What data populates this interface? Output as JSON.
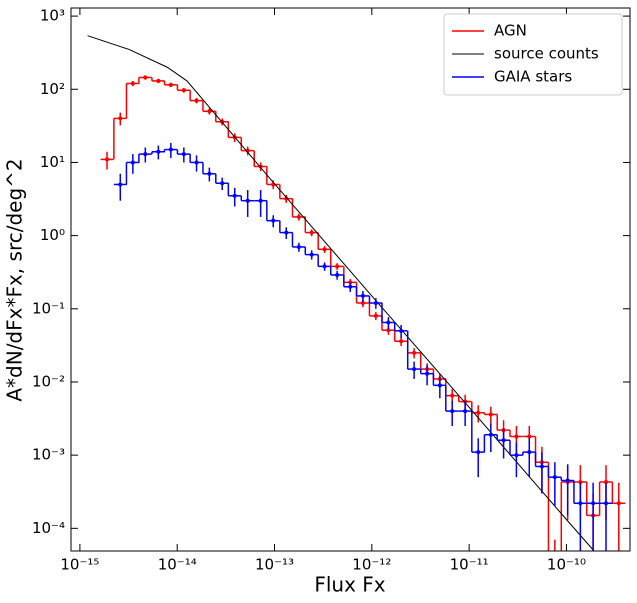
{
  "chart_data": {
    "type": "loglog-step",
    "xlabel": "Flux Fx",
    "ylabel": "A*dN/dFx*Fx, src/deg^2",
    "xscale": "log",
    "yscale": "log",
    "legend": "upper right",
    "xlim": [
      8.1e-16,
      4.5e-10
    ],
    "ylim": [
      4.9e-05,
      1290
    ],
    "xticks": [
      {
        "value": 1e-15,
        "label": "10⁻¹⁵"
      },
      {
        "value": 1e-14,
        "label": "10⁻¹⁴"
      },
      {
        "value": 1e-13,
        "label": "10⁻¹³"
      },
      {
        "value": 1e-12,
        "label": "10⁻¹²"
      },
      {
        "value": 1e-11,
        "label": "10⁻¹¹"
      },
      {
        "value": 1e-10,
        "label": "10⁻¹⁰"
      }
    ],
    "yticks": [
      {
        "value": 0.0001,
        "label": "10⁻⁴"
      },
      {
        "value": 0.001,
        "label": "10⁻³"
      },
      {
        "value": 0.01,
        "label": "10⁻²"
      },
      {
        "value": 0.1,
        "label": "10⁻¹"
      },
      {
        "value": 1,
        "label": "10⁰"
      },
      {
        "value": 10,
        "label": "10¹"
      },
      {
        "value": 100,
        "label": "10²"
      },
      {
        "value": 1000,
        "label": "10³"
      }
    ],
    "series": [
      {
        "name": "AGN",
        "color": "#ff0000",
        "style": "step",
        "x": [
          1.9e-15,
          2.6e-15,
          3.5e-15,
          4.7e-15,
          6.4e-15,
          8.6e-15,
          1.17e-14,
          1.58e-14,
          2.14e-14,
          2.9e-14,
          3.9e-14,
          5.3e-14,
          7.2e-14,
          9.7e-14,
          1.32e-13,
          1.78e-13,
          2.41e-13,
          3.27e-13,
          4.4e-13,
          6e-13,
          8.1e-13,
          1.1e-12,
          1.48e-12,
          2e-12,
          2.72e-12,
          3.7e-12,
          5e-12,
          6.7e-12,
          9.1e-12,
          1.24e-11,
          1.67e-11,
          2.26e-11,
          3.06e-11,
          4.15e-11,
          5.6e-11,
          7.6e-11,
          1.03e-10,
          1.39e-10,
          1.88e-10,
          2.55e-10,
          3.45e-10
        ],
        "values": [
          11,
          40,
          120,
          145,
          130,
          115,
          97,
          70,
          50,
          36,
          22,
          14.5,
          8.8,
          5,
          3.2,
          1.8,
          1.1,
          0.65,
          0.38,
          0.23,
          0.12,
          0.08,
          0.051,
          0.036,
          0.025,
          0.015,
          0.011,
          0.0065,
          0.0054,
          0.0038,
          0.0036,
          0.0022,
          0.0018,
          0.0018,
          0.0008,
          3e-05,
          0.00043,
          0.00043,
          0.00015,
          0.00043,
          0.00022
        ],
        "errors": [
          3,
          8,
          10,
          10,
          9,
          8,
          7,
          6,
          5,
          4,
          3,
          2,
          1.2,
          0.7,
          0.4,
          0.2,
          0.12,
          0.07,
          0.04,
          0.025,
          0.015,
          0.01,
          0.007,
          0.005,
          0.004,
          0.003,
          0.002,
          0.0015,
          0.0013,
          0.001,
          0.001,
          0.0008,
          0.0007,
          0.0007,
          0.0005,
          4e-05,
          0.0003,
          0.0003,
          0.00015,
          0.0003,
          0.0002
        ]
      },
      {
        "name": "source counts",
        "color": "#000000",
        "style": "line",
        "x": [
          1.2e-15,
          3.2e-15,
          7.9e-15,
          1.26e-14,
          1e-13,
          1e-12,
          1e-11,
          1e-10,
          1.9e-10
        ],
        "values": [
          540,
          350,
          200,
          130,
          5.1,
          0.15,
          0.0045,
          0.000132,
          5e-05
        ]
      },
      {
        "name": "GAIA stars",
        "color": "#0000ff",
        "style": "step",
        "x": [
          2.6e-15,
          3.5e-15,
          4.7e-15,
          6.4e-15,
          8.6e-15,
          1.17e-14,
          1.58e-14,
          2.14e-14,
          2.9e-14,
          3.9e-14,
          5.3e-14,
          7.2e-14,
          9.7e-14,
          1.32e-13,
          1.78e-13,
          2.41e-13,
          3.27e-13,
          4.4e-13,
          6e-13,
          8.1e-13,
          1.1e-12,
          1.48e-12,
          2e-12,
          2.72e-12,
          3.7e-12,
          5e-12,
          6.7e-12,
          9.1e-12,
          1.24e-11,
          1.67e-11,
          2.26e-11,
          3.06e-11,
          4.15e-11,
          5.6e-11,
          7.6e-11,
          1.03e-10,
          1.39e-10,
          1.88e-10,
          2.55e-10
        ],
        "values": [
          5,
          10,
          13,
          14,
          15,
          13,
          10,
          7,
          5.2,
          3.5,
          3,
          3,
          1.6,
          1.1,
          0.7,
          0.55,
          0.38,
          0.29,
          0.2,
          0.15,
          0.12,
          0.065,
          0.05,
          0.015,
          0.013,
          0.009,
          0.004,
          0.004,
          0.0011,
          0.0019,
          0.0016,
          0.001,
          0.0011,
          0.0007,
          0.0005,
          0.00045,
          0.00022,
          0.00022,
          0.00022
        ],
        "errors": [
          2,
          3,
          3,
          3,
          3.5,
          3,
          2.5,
          1.5,
          1,
          1,
          1.2,
          1.2,
          0.3,
          0.2,
          0.1,
          0.08,
          0.05,
          0.04,
          0.03,
          0.025,
          0.02,
          0.012,
          0.01,
          0.004,
          0.004,
          0.003,
          0.0015,
          0.0015,
          0.0006,
          0.0008,
          0.0007,
          0.0005,
          0.0006,
          0.0004,
          0.0003,
          0.0003,
          0.0002,
          0.0002,
          0.0002
        ]
      }
    ]
  }
}
